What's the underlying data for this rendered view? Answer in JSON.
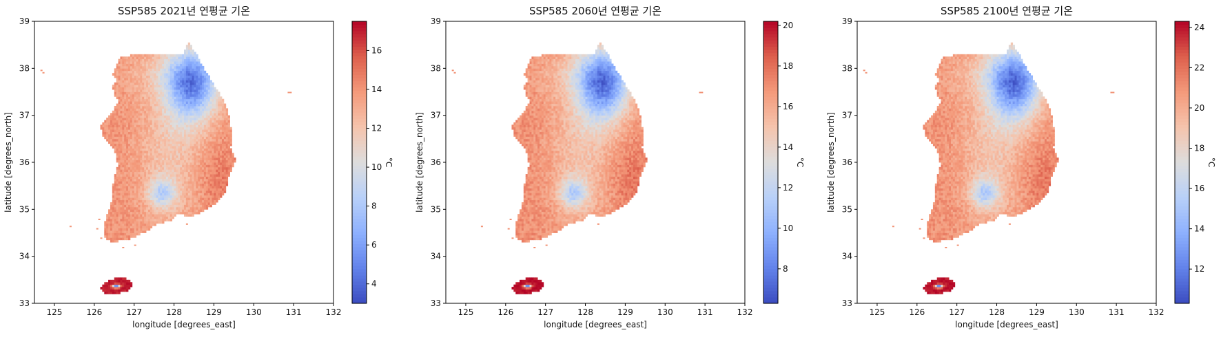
{
  "chart_data": [
    {
      "type": "heatmap",
      "title": "SSP585 2021년 연평균 기온",
      "xlabel": "longitude [degrees_east]",
      "ylabel": "latitude [degrees_north]",
      "xlim": [
        124.5,
        132
      ],
      "ylim": [
        33,
        39
      ],
      "xticks": [
        125,
        126,
        127,
        128,
        129,
        130,
        131,
        132
      ],
      "yticks": [
        33,
        34,
        35,
        36,
        37,
        38,
        39
      ],
      "grid": false,
      "colormap": "coolwarm",
      "colorbar": {
        "label": "°C",
        "range": [
          3,
          17.5
        ],
        "ticks": [
          4,
          6,
          8,
          10,
          12,
          14,
          16
        ]
      },
      "value_summary": {
        "lowland": 14,
        "inland": 12,
        "mountain_north": 6,
        "jeju_coast": 17,
        "jeju_peak": 4
      }
    },
    {
      "type": "heatmap",
      "title": "SSP585 2060년 연평균 기온",
      "xlabel": "longitude [degrees_east]",
      "ylabel": "latitude [degrees_north]",
      "xlim": [
        124.5,
        132
      ],
      "ylim": [
        33,
        39
      ],
      "xticks": [
        125,
        126,
        127,
        128,
        129,
        130,
        131,
        132
      ],
      "yticks": [
        33,
        34,
        35,
        36,
        37,
        38,
        39
      ],
      "grid": false,
      "colormap": "coolwarm",
      "colorbar": {
        "label": "°C",
        "range": [
          6.3,
          20.2
        ],
        "ticks": [
          8,
          10,
          12,
          14,
          16,
          18,
          20
        ]
      },
      "value_summary": {
        "lowland": 17,
        "inland": 15,
        "mountain_north": 9,
        "jeju_coast": 20,
        "jeju_peak": 7
      }
    },
    {
      "type": "heatmap",
      "title": "SSP585 2100년 연평균 기온",
      "xlabel": "longitude [degrees_east]",
      "ylabel": "latitude [degrees_north]",
      "xlim": [
        124.5,
        132
      ],
      "ylim": [
        33,
        39
      ],
      "xticks": [
        125,
        126,
        127,
        128,
        129,
        130,
        131,
        132
      ],
      "yticks": [
        33,
        34,
        35,
        36,
        37,
        38,
        39
      ],
      "grid": false,
      "colormap": "coolwarm",
      "colorbar": {
        "label": "°C",
        "range": [
          10.3,
          24.3
        ],
        "ticks": [
          12,
          14,
          16,
          18,
          20,
          22,
          24
        ]
      },
      "value_summary": {
        "lowland": 21,
        "inland": 19,
        "mountain_north": 13,
        "jeju_coast": 24,
        "jeju_peak": 11
      }
    }
  ]
}
